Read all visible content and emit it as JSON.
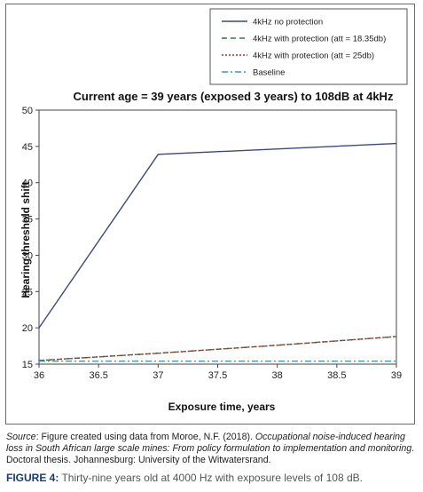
{
  "chart_data": {
    "type": "line",
    "title": "Current age = 39 years (exposed 3 years) to 108dB at 4kHz",
    "xlabel": "Exposure time, years",
    "ylabel": "Hearing threshold shift",
    "xlim": [
      36,
      39
    ],
    "ylim": [
      15,
      50
    ],
    "x_ticks": [
      "36",
      "36.5",
      "37",
      "37.5",
      "38",
      "38.5",
      "39"
    ],
    "y_ticks": [
      "15",
      "20",
      "25",
      "30",
      "35",
      "40",
      "45",
      "50"
    ],
    "grid": false,
    "legend_position": "top-right",
    "series": [
      {
        "name": "4kHz no protection",
        "color": "#3a4a7a",
        "style": "solid",
        "x": [
          36,
          37,
          39
        ],
        "y": [
          20,
          43.9,
          45.4
        ]
      },
      {
        "name": "4kHz with protection (att = 18.35db)",
        "color": "#2e7d4a",
        "style": "dashed",
        "x": [
          36,
          37,
          38,
          39
        ],
        "y": [
          15.5,
          16.5,
          17.6,
          18.8
        ]
      },
      {
        "name": "4kHz with protection (att = 25db)",
        "color": "#a0302a",
        "style": "dotted",
        "x": [
          36,
          37,
          38,
          39
        ],
        "y": [
          15.5,
          16.5,
          17.6,
          18.8
        ]
      },
      {
        "name": "Baseline",
        "color": "#3a9ac0",
        "style": "dashdot",
        "x": [
          36,
          39
        ],
        "y": [
          15.4,
          15.4
        ]
      }
    ]
  },
  "source": {
    "label": "Source",
    "prefix": ": Figure created using data from Moroe, N.F. (2018). ",
    "title": "Occupational noise-induced hearing loss in South African large scale mines: From policy formulation to implementation and monitoring",
    "suffix": ". Doctoral thesis. Johannesburg: University of the Witwatersrand."
  },
  "caption": {
    "label": "FIGURE 4:",
    "text": " Thirty-nine years old at 4000 Hz with exposure levels of 108 dB."
  }
}
